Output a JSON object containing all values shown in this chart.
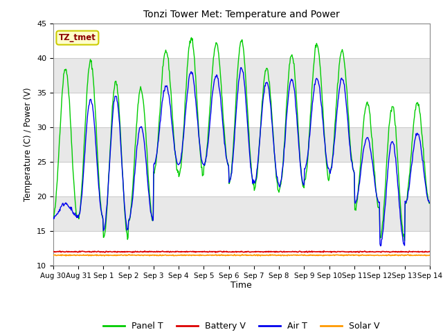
{
  "title": "Tonzi Tower Met: Temperature and Power",
  "xlabel": "Time",
  "ylabel": "Temperature (C) / Power (V)",
  "ylim": [
    10,
    45
  ],
  "yticks": [
    10,
    15,
    20,
    25,
    30,
    35,
    40,
    45
  ],
  "annotation_text": "TZ_tmet",
  "annotation_color": "#8B0000",
  "annotation_bg": "#FFFFCC",
  "annotation_border": "#CCCC00",
  "panel_t_color": "#00CC00",
  "air_t_color": "#0000EE",
  "battery_v_color": "#DD0000",
  "solar_v_color": "#FF9900",
  "plot_bg_color": "#E8E8E8",
  "band_color": "#FFFFFF",
  "n_days": 15,
  "panel_t_peaks": [
    38.5,
    17.0,
    39.5,
    17.0,
    36.5,
    14.0,
    35.5,
    16.5,
    41.0,
    23.5,
    43.0,
    23.0,
    42.0,
    24.5,
    42.5,
    22.0,
    38.5,
    21.0,
    40.5,
    21.0,
    42.0,
    22.5,
    41.0,
    23.5,
    33.5,
    18.0,
    33.0,
    14.0,
    33.5,
    19.0
  ],
  "air_t_peaks": [
    19.0,
    17.0,
    34.0,
    17.0,
    34.5,
    15.0,
    30.0,
    16.5,
    36.0,
    24.5,
    38.0,
    24.5,
    37.5,
    24.5,
    38.5,
    22.0,
    36.5,
    22.0,
    37.0,
    21.5,
    37.0,
    24.0,
    37.0,
    23.5,
    28.5,
    19.0,
    28.0,
    13.0,
    29.0,
    19.0
  ],
  "battery_v_flat": 12.0,
  "solar_v_flat": 11.5,
  "points_per_day": 48,
  "tick_labels": [
    "Aug 30",
    "Aug 31",
    "Sep 1",
    "Sep 2",
    "Sep 3",
    "Sep 4",
    "Sep 5",
    "Sep 6",
    "Sep 7",
    "Sep 8",
    "Sep 9",
    "Sep 10",
    "Sep 11",
    "Sep 12",
    "Sep 13",
    "Sep 14"
  ]
}
